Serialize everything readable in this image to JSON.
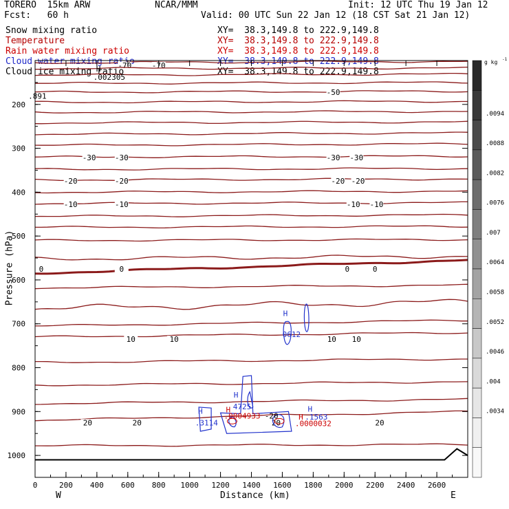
{
  "header": {
    "model": "TORERO  15km ARW",
    "center": "NCAR/MMM",
    "init": "Init: 12 UTC Thu 19 Jan 12",
    "fcst": "Fcst:   60 h",
    "valid": "Valid: 00 UTC Sun 22 Jan 12 (18 CST Sat 21 Jan 12)"
  },
  "legend": [
    {
      "name": "Snow mixing ratio",
      "xy": "XY=  38.3,149.8 to 222.9,149.8",
      "color": "#000000",
      "xy_color": "#000000"
    },
    {
      "name": "Temperature",
      "xy": "XY=  38.3,149.8 to 222.9,149.8",
      "color": "#b40000",
      "xy_color": "#b40000"
    },
    {
      "name": "Rain water mixing ratio",
      "xy": "XY=  38.3,149.8 to 222.9,149.8",
      "color": "#cc0000",
      "xy_color": "#cc0000"
    },
    {
      "name": "Cloud water mixing ratio",
      "xy": "XY=  38.3,149.8 to 222.9,149.8",
      "color": "#1e28c8",
      "xy_color": "#1e28c8"
    },
    {
      "name": "Cloud ice mixing ratio",
      "xy": "XY=  38.3,149.8 to 222.9,149.8",
      "color": "#000000",
      "xy_color": "#000000"
    }
  ],
  "chart_data": {
    "type": "cross-section contour",
    "xlabel": "Distance (km)",
    "ylabel": "Pressure (hPa)",
    "xlim": [
      0,
      2800
    ],
    "ylim": [
      1050,
      100
    ],
    "x_ticks": [
      0,
      200,
      400,
      600,
      800,
      1000,
      1200,
      1400,
      1600,
      1800,
      2000,
      2200,
      2400,
      2600
    ],
    "y_ticks": [
      200,
      300,
      400,
      500,
      600,
      700,
      800,
      900,
      1000
    ],
    "end_labels": {
      "left": "W",
      "right": "E"
    },
    "temperature_contours": [
      {
        "p_left": 105,
        "p_right": 102,
        "label": "-70",
        "labels_at": [
          580,
          800
        ],
        "label_y": 111
      },
      {
        "p_left": 118,
        "p_right": 117,
        "label": ""
      },
      {
        "p_left": 133,
        "p_right": 131,
        "label": ""
      },
      {
        "p_left": 152,
        "p_right": 150,
        "label": ""
      },
      {
        "p_left": 172,
        "p_right": 170,
        "label": "-50",
        "labels_at": [
          1930
        ],
        "label_y": 172
      },
      {
        "p_left": 195,
        "p_right": 193,
        "label": ""
      },
      {
        "p_left": 218,
        "p_right": 216,
        "label": ""
      },
      {
        "p_left": 242,
        "p_right": 240,
        "label": ""
      },
      {
        "p_left": 268,
        "p_right": 265,
        "label": ""
      },
      {
        "p_left": 293,
        "p_right": 290,
        "label": ""
      },
      {
        "p_left": 320,
        "p_right": 318,
        "label": "-30",
        "labels_at": [
          350,
          560,
          1930,
          2080
        ],
        "label_y": 321
      },
      {
        "p_left": 348,
        "p_right": 346,
        "label": ""
      },
      {
        "p_left": 372,
        "p_right": 370,
        "label": "-20",
        "labels_at": [
          230,
          560,
          1960,
          2090
        ],
        "label_y": 374
      },
      {
        "p_left": 400,
        "p_right": 398,
        "label": ""
      },
      {
        "p_left": 426,
        "p_right": 424,
        "label": "-10",
        "labels_at": [
          230,
          560,
          2060,
          2210
        ],
        "label_y": 428
      },
      {
        "p_left": 455,
        "p_right": 452,
        "label": ""
      },
      {
        "p_left": 480,
        "p_right": 478,
        "label": ""
      },
      {
        "p_left": 510,
        "p_right": 508,
        "label": ""
      },
      {
        "p_left": 552,
        "p_right": 546,
        "label": "",
        "wave": 6
      },
      {
        "p_left": 585,
        "p_right": 555,
        "label": "0",
        "labels_at": [
          40,
          560,
          2020,
          2200
        ],
        "label_y": 575,
        "bold": true
      },
      {
        "p_left": 618,
        "p_right": 612,
        "label": ""
      },
      {
        "p_left": 665,
        "p_right": 650,
        "label": "",
        "wave": 10
      },
      {
        "p_left": 705,
        "p_right": 692,
        "label": ""
      },
      {
        "p_left": 730,
        "p_right": 720,
        "label": "10",
        "labels_at": [
          620,
          900,
          1920,
          2080
        ],
        "label_y": 735
      },
      {
        "p_left": 788,
        "p_right": 780,
        "label": ""
      },
      {
        "p_left": 840,
        "p_right": 832,
        "label": ""
      },
      {
        "p_left": 882,
        "p_right": 872,
        "label": ""
      },
      {
        "p_left": 920,
        "p_right": 900,
        "label": "20",
        "labels_at": [
          340,
          660,
          1560,
          2230
        ],
        "label_y": 925
      },
      {
        "p_left": 978,
        "p_right": 975,
        "label": ""
      }
    ],
    "ground_pressure": [
      1010,
      1010,
      1010,
      1010,
      1010,
      1010,
      1010,
      1010,
      1010,
      1010,
      1010,
      1010,
      1010,
      1010,
      985,
      1000
    ],
    "ground_x": [
      0,
      200,
      400,
      600,
      800,
      1000,
      1200,
      1400,
      1600,
      1800,
      2000,
      2200,
      2400,
      2650,
      2730,
      2800
    ],
    "cloud_water_max_labels": [
      {
        "text": "H",
        "x": 1620,
        "p": 682
      },
      {
        "text": "0612",
        "x": 1660,
        "p": 730
      },
      {
        "text": "H",
        "x": 1300,
        "p": 868
      },
      {
        "text": "4725",
        "x": 1340,
        "p": 895
      },
      {
        "text": "H",
        "x": 1070,
        "p": 905
      },
      {
        "text": ".3114",
        "x": 1110,
        "p": 932
      },
      {
        "text": "H",
        "x": 1780,
        "p": 900
      },
      {
        "text": ".1563",
        "x": 1820,
        "p": 918
      }
    ],
    "rain_max_labels": [
      {
        "text": "H",
        "x": 1250,
        "p": 902
      },
      {
        "text": ".0004933",
        "x": 1340,
        "p": 916
      },
      {
        "text": "H",
        "x": 1720,
        "p": 918
      },
      {
        "text": ".0000032",
        "x": 1800,
        "p": 933
      }
    ],
    "snow_max_labels": [
      {
        "text": "H",
        "x": 410,
        "p": 125
      },
      {
        "text": ".002305",
        "x": 480,
        "p": 144
      },
      {
        "text": ".891",
        "x": 15,
        "p": 187
      },
      {
        "text": "-20",
        "x": 1530,
        "p": 916
      }
    ],
    "colorbar": {
      "unit": "g kg",
      "unit_exp": "-1",
      "labels": [
        ".0094",
        ".0088",
        ".0082",
        ".0076",
        ".007",
        ".0064",
        ".0058",
        ".0052",
        ".0046",
        ".004",
        ".0034"
      ],
      "colors": [
        "#2a2a2a",
        "#393939",
        "#4a4a4a",
        "#5b5b5b",
        "#6d6d6d",
        "#7f7f7f",
        "#919191",
        "#a3a3a3",
        "#b5b5b5",
        "#c8c8c8",
        "#d9d9d9",
        "#e6e6e6",
        "#f0f0f0",
        "#f8f8f8"
      ]
    }
  }
}
